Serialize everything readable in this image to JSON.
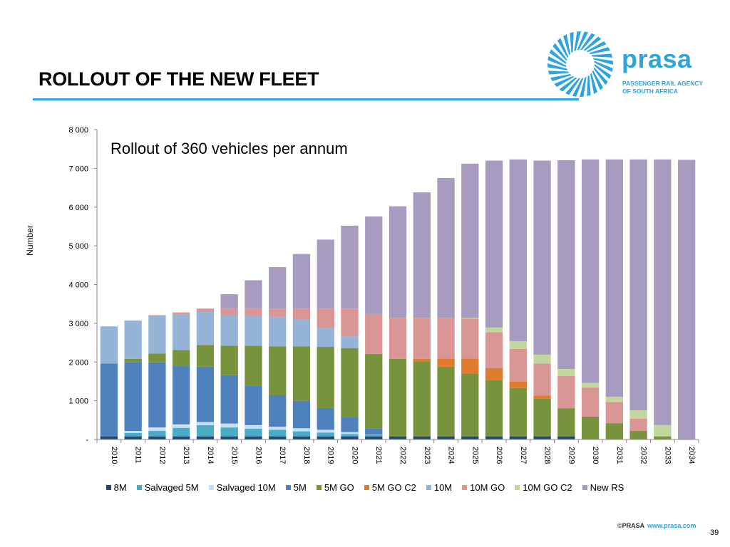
{
  "slide": {
    "title": "ROLLOUT OF THE NEW FLEET",
    "page_number": "39",
    "accent_color": "#2ea3dc"
  },
  "logo": {
    "wordmark": "prasa",
    "subtitle_line1": "PASSENGER RAIL AGENCY",
    "subtitle_line2": "OF SOUTH AFRICA",
    "color": "#2ea3dc",
    "icon": "sunburst-logo-icon"
  },
  "footer": {
    "brand": "©PRASA",
    "url": "www.prasa.com"
  },
  "chart_data": {
    "type": "bar",
    "stacked": true,
    "title": "",
    "annotation": "Rollout of 360 vehicles per annum",
    "xlabel": "",
    "ylabel": "Number",
    "ylim": [
      0,
      8000
    ],
    "yticks": [
      0,
      1000,
      2000,
      3000,
      4000,
      5000,
      6000,
      7000,
      8000
    ],
    "ytick_labels": [
      "-",
      "1 000",
      "2 000",
      "3 000",
      "4 000",
      "5 000",
      "6 000",
      "7 000",
      "8 000"
    ],
    "grid": false,
    "legend_position": "bottom",
    "categories": [
      "2010",
      "2011",
      "2012",
      "2013",
      "2014",
      "2015",
      "2016",
      "2017",
      "2018",
      "2019",
      "2020",
      "2021",
      "2022",
      "2023",
      "2024",
      "2025",
      "2026",
      "2027",
      "2028",
      "2029",
      "2030",
      "2031",
      "2032",
      "2033",
      "2034"
    ],
    "series": [
      {
        "name": "8M",
        "color": "#1f497d",
        "values": [
          80,
          80,
          80,
          80,
          80,
          80,
          80,
          80,
          80,
          80,
          80,
          80,
          80,
          80,
          80,
          80,
          80,
          80,
          80,
          80,
          0,
          0,
          0,
          0,
          0
        ]
      },
      {
        "name": "Salvaged 5M",
        "color": "#4bacc6",
        "values": [
          0,
          90,
          140,
          220,
          290,
          230,
          200,
          170,
          130,
          100,
          60,
          30,
          0,
          0,
          0,
          0,
          0,
          0,
          0,
          0,
          0,
          0,
          0,
          0,
          0
        ]
      },
      {
        "name": "Salvaged 10M",
        "color": "#c6dff2",
        "values": [
          0,
          50,
          90,
          90,
          80,
          100,
          90,
          80,
          80,
          70,
          50,
          10,
          0,
          0,
          0,
          0,
          0,
          0,
          0,
          0,
          0,
          0,
          0,
          0,
          0
        ]
      },
      {
        "name": "5M",
        "color": "#4f81bd",
        "values": [
          1880,
          1780,
          1680,
          1520,
          1430,
          1250,
          1010,
          810,
          710,
          560,
          380,
          170,
          0,
          0,
          0,
          0,
          0,
          0,
          0,
          0,
          0,
          0,
          0,
          0,
          0
        ]
      },
      {
        "name": "5M GO",
        "color": "#77933c",
        "values": [
          0,
          80,
          230,
          400,
          560,
          760,
          1040,
          1260,
          1400,
          1580,
          1790,
          1920,
          2000,
          1940,
          1800,
          1620,
          1460,
          1250,
          970,
          720,
          590,
          420,
          220,
          80,
          0
        ]
      },
      {
        "name": "5M GO C2",
        "color": "#e07a2c",
        "values": [
          0,
          0,
          0,
          0,
          0,
          0,
          0,
          0,
          0,
          0,
          0,
          0,
          0,
          60,
          210,
          390,
          300,
          160,
          80,
          0,
          0,
          0,
          0,
          0,
          0
        ]
      },
      {
        "name": "10M",
        "color": "#95b3d7",
        "values": [
          960,
          990,
          970,
          920,
          860,
          790,
          780,
          770,
          700,
          490,
          300,
          0,
          0,
          0,
          0,
          0,
          0,
          0,
          0,
          0,
          0,
          0,
          0,
          0,
          0
        ]
      },
      {
        "name": "10M GO",
        "color": "#d99694",
        "values": [
          0,
          0,
          20,
          50,
          80,
          180,
          190,
          200,
          270,
          500,
          720,
          1030,
          1060,
          1060,
          1050,
          1030,
          930,
          850,
          830,
          840,
          750,
          550,
          320,
          0,
          0
        ]
      },
      {
        "name": "10M GO C2",
        "color": "#c3d69b",
        "values": [
          0,
          0,
          0,
          0,
          0,
          0,
          0,
          0,
          0,
          0,
          0,
          0,
          0,
          0,
          0,
          20,
          120,
          200,
          230,
          180,
          120,
          130,
          210,
          290,
          0
        ]
      },
      {
        "name": "New RS",
        "color": "#a89bc0",
        "values": [
          0,
          0,
          0,
          0,
          0,
          360,
          720,
          1080,
          1420,
          1780,
          2140,
          2520,
          2880,
          3240,
          3610,
          3980,
          4310,
          4690,
          5010,
          5390,
          5770,
          6130,
          6480,
          6860,
          7220
        ]
      }
    ]
  }
}
